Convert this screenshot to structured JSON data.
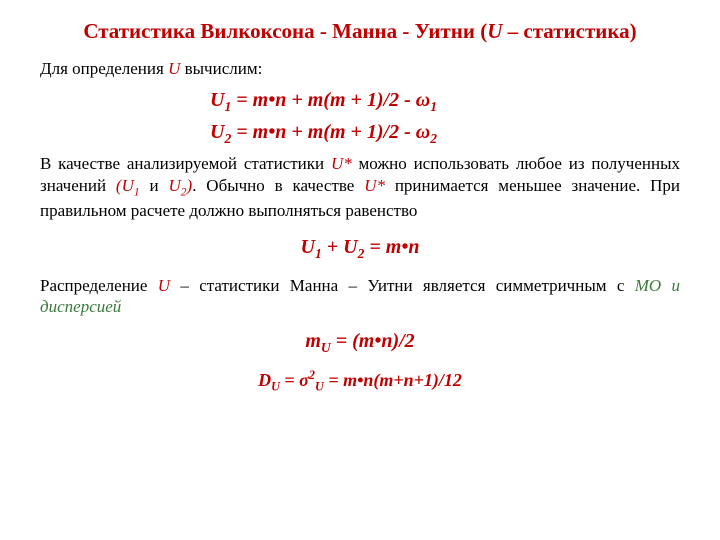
{
  "colors": {
    "accent": "#c00000",
    "green": "#3a7a3a",
    "black": "#000000"
  },
  "title": {
    "prefix": "Статистика Вилкоксона - Манна - Уитни  (",
    "U": "U",
    "suffix": " – статистика)",
    "color": "#c00000",
    "fontsize": 21
  },
  "intro": {
    "prefix": "Для определения ",
    "U": "U",
    "suffix": " вычислим:",
    "fontsize": 17
  },
  "formula1": {
    "lhs_sym": "U",
    "lhs_sub": "1",
    "mid": " = m•n + m(m + 1)/2  -  ",
    "omega": "ω",
    "omega_sub": "1",
    "color": "#c00000",
    "fontsize": 20
  },
  "formula2": {
    "lhs_sym": "U",
    "lhs_sub": "2",
    "mid": " = m•n + m(m + 1)/2  -  ",
    "omega": "ω",
    "omega_sub": "2",
    "color": "#c00000",
    "fontsize": 20
  },
  "para1": {
    "seg1": "В качестве анализируемой статистики ",
    "Ustar": "U*",
    "seg2": " можно использовать любое из полученных значений ",
    "paren_open": "(",
    "U1sym": "U",
    "U1sub": "1",
    "and_word": " и ",
    "U2sym": "U",
    "U2sub": "2",
    "paren_close": ")",
    "seg3": ". Обычно в качестве ",
    "Ustar2": "U*",
    "seg4": " принимается меньшее значение. При правильном расчете должно выполняться равенство",
    "fontsize": 17
  },
  "equality": {
    "U1sym": "U",
    "U1sub": "1",
    "plus": " + ",
    "U2sym": "U",
    "U2sub": "2",
    "rhs": " = m•n",
    "color": "#c00000",
    "fontsize": 20
  },
  "para2": {
    "seg1": "Распределение ",
    "U": "U",
    "seg2": " – статистики Манна – Уитни является симметричным с ",
    "tail": "МО и дисперсией",
    "tail_color": "#3a7a3a",
    "fontsize": 17
  },
  "mU": {
    "m": "m",
    "sub": "U",
    "rhs": " = (m•n)/2",
    "color": "#c00000",
    "fontsize": 20
  },
  "DU": {
    "D": "D",
    "Dsub": "U",
    "eq1": " = ",
    "sigma": "σ",
    "sigma_sup": "2",
    "sigma_sub": "U",
    "rhs": " = m•n(m+n+1)/12",
    "color": "#c00000",
    "fontsize": 18
  }
}
